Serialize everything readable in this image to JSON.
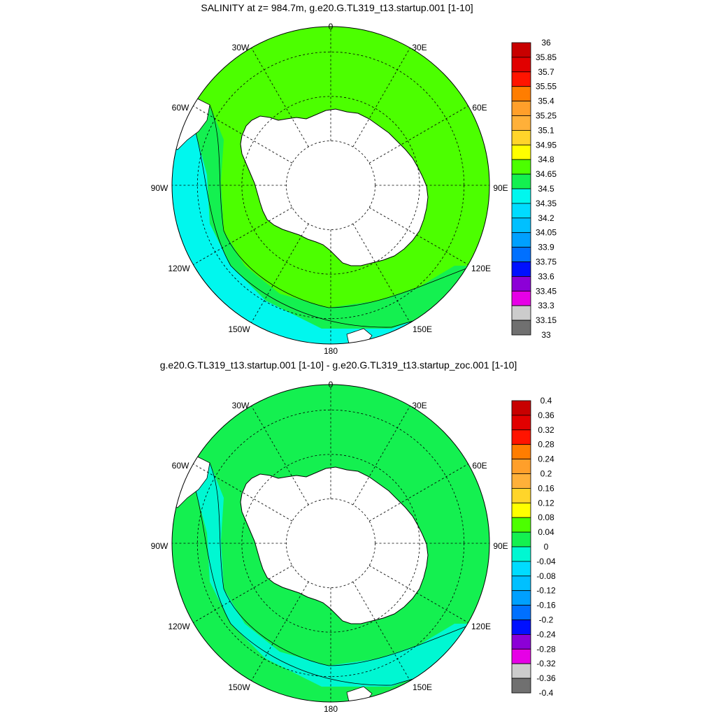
{
  "panels": [
    {
      "id": "salinity",
      "title": "SALINITY at z= 984.7m, g.e20.G.TL319_t13.startup.001 [1-10]",
      "ocean_color": "#4cff00",
      "outer_color": "#14f050",
      "outer2_color": "#00f7ee",
      "colorbar": {
        "labels": [
          "36",
          "35.85",
          "35.7",
          "35.55",
          "35.4",
          "35.25",
          "35.1",
          "34.95",
          "34.8",
          "34.65",
          "34.5",
          "34.35",
          "34.2",
          "34.05",
          "33.9",
          "33.75",
          "33.6",
          "33.45",
          "33.3",
          "33.15",
          "33"
        ],
        "colors": [
          "#c80000",
          "#e10000",
          "#ff1400",
          "#ff7d00",
          "#ff9f2a",
          "#ffb039",
          "#ffd52a",
          "#ffff00",
          "#4cff00",
          "#14f050",
          "#00f7ee",
          "#00dcff",
          "#00c0ff",
          "#00a0ff",
          "#0070ff",
          "#0010ff",
          "#8c00d7",
          "#e600e6",
          "#cccccc",
          "#707070"
        ]
      }
    },
    {
      "id": "difference",
      "title": "g.e20.G.TL319_t13.startup.001 [1-10] - g.e20.G.TL319_t13.startup_zoc.001 [1-10]",
      "ocean_color": "#14f050",
      "outer_color": "#00f7d2",
      "outer2_color": "#14f050",
      "colorbar": {
        "labels": [
          "0.4",
          "0.36",
          "0.32",
          "0.28",
          "0.24",
          "0.2",
          "0.16",
          "0.12",
          "0.08",
          "0.04",
          "0",
          "-0.04",
          "-0.08",
          "-0.12",
          "-0.16",
          "-0.2",
          "-0.24",
          "-0.28",
          "-0.32",
          "-0.36",
          "-0.4"
        ],
        "colors": [
          "#c80000",
          "#e10000",
          "#ff1400",
          "#ff7d00",
          "#ff9f2a",
          "#ffb039",
          "#ffd52a",
          "#ffff00",
          "#4cff00",
          "#14f050",
          "#00f7d2",
          "#00dcff",
          "#00c0ff",
          "#00a0ff",
          "#0070ff",
          "#0010ff",
          "#8c00d7",
          "#e600e6",
          "#cccccc",
          "#707070"
        ]
      }
    }
  ],
  "longitude_labels": [
    "0",
    "30E",
    "60E",
    "90E",
    "120E",
    "150E",
    "180",
    "150W",
    "120W",
    "90W",
    "60W",
    "30W"
  ]
}
